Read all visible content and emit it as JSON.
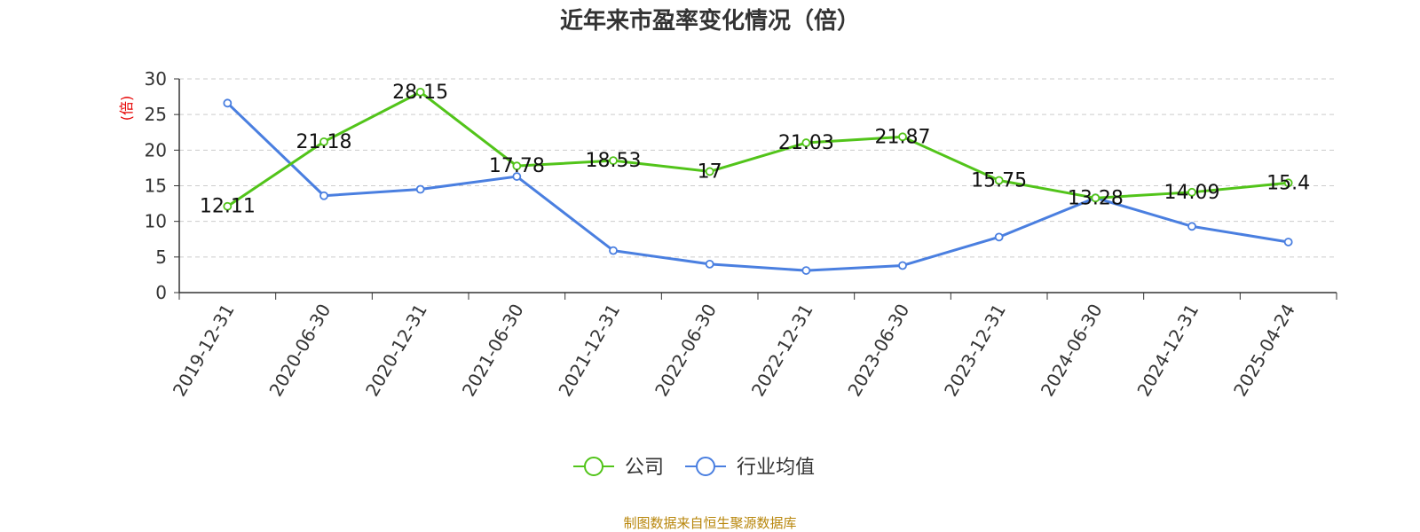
{
  "chart_data": {
    "type": "line",
    "title": "近年来市盈率变化情况（倍）",
    "ylabel": "(倍)",
    "xlabel": "",
    "ylim": [
      0,
      30
    ],
    "yticks": [
      0,
      5,
      10,
      15,
      20,
      25,
      30
    ],
    "grid": true,
    "legend_position": "bottom",
    "categories": [
      "2019-12-31",
      "2020-06-30",
      "2020-12-31",
      "2021-06-30",
      "2021-12-31",
      "2022-06-30",
      "2022-12-31",
      "2023-06-30",
      "2023-12-31",
      "2024-06-30",
      "2024-12-31",
      "2025-04-24"
    ],
    "series": [
      {
        "name": "公司",
        "color": "#52c41a",
        "values": [
          12.11,
          21.18,
          28.15,
          17.78,
          18.53,
          17,
          21.03,
          21.87,
          15.75,
          13.28,
          14.09,
          15.4
        ],
        "labels": [
          "12.11",
          "21.18",
          "28.15",
          "17.78",
          "18.53",
          "17",
          "21.03",
          "21.87",
          "15.75",
          "13.28",
          "14.09",
          "15.4"
        ]
      },
      {
        "name": "行业均值",
        "color": "#4a7fe0",
        "values": [
          26.6,
          13.6,
          14.5,
          16.3,
          5.9,
          4.0,
          3.1,
          3.8,
          7.8,
          13.3,
          9.3,
          7.1
        ]
      }
    ],
    "source": "制图数据来自恒生聚源数据库"
  }
}
